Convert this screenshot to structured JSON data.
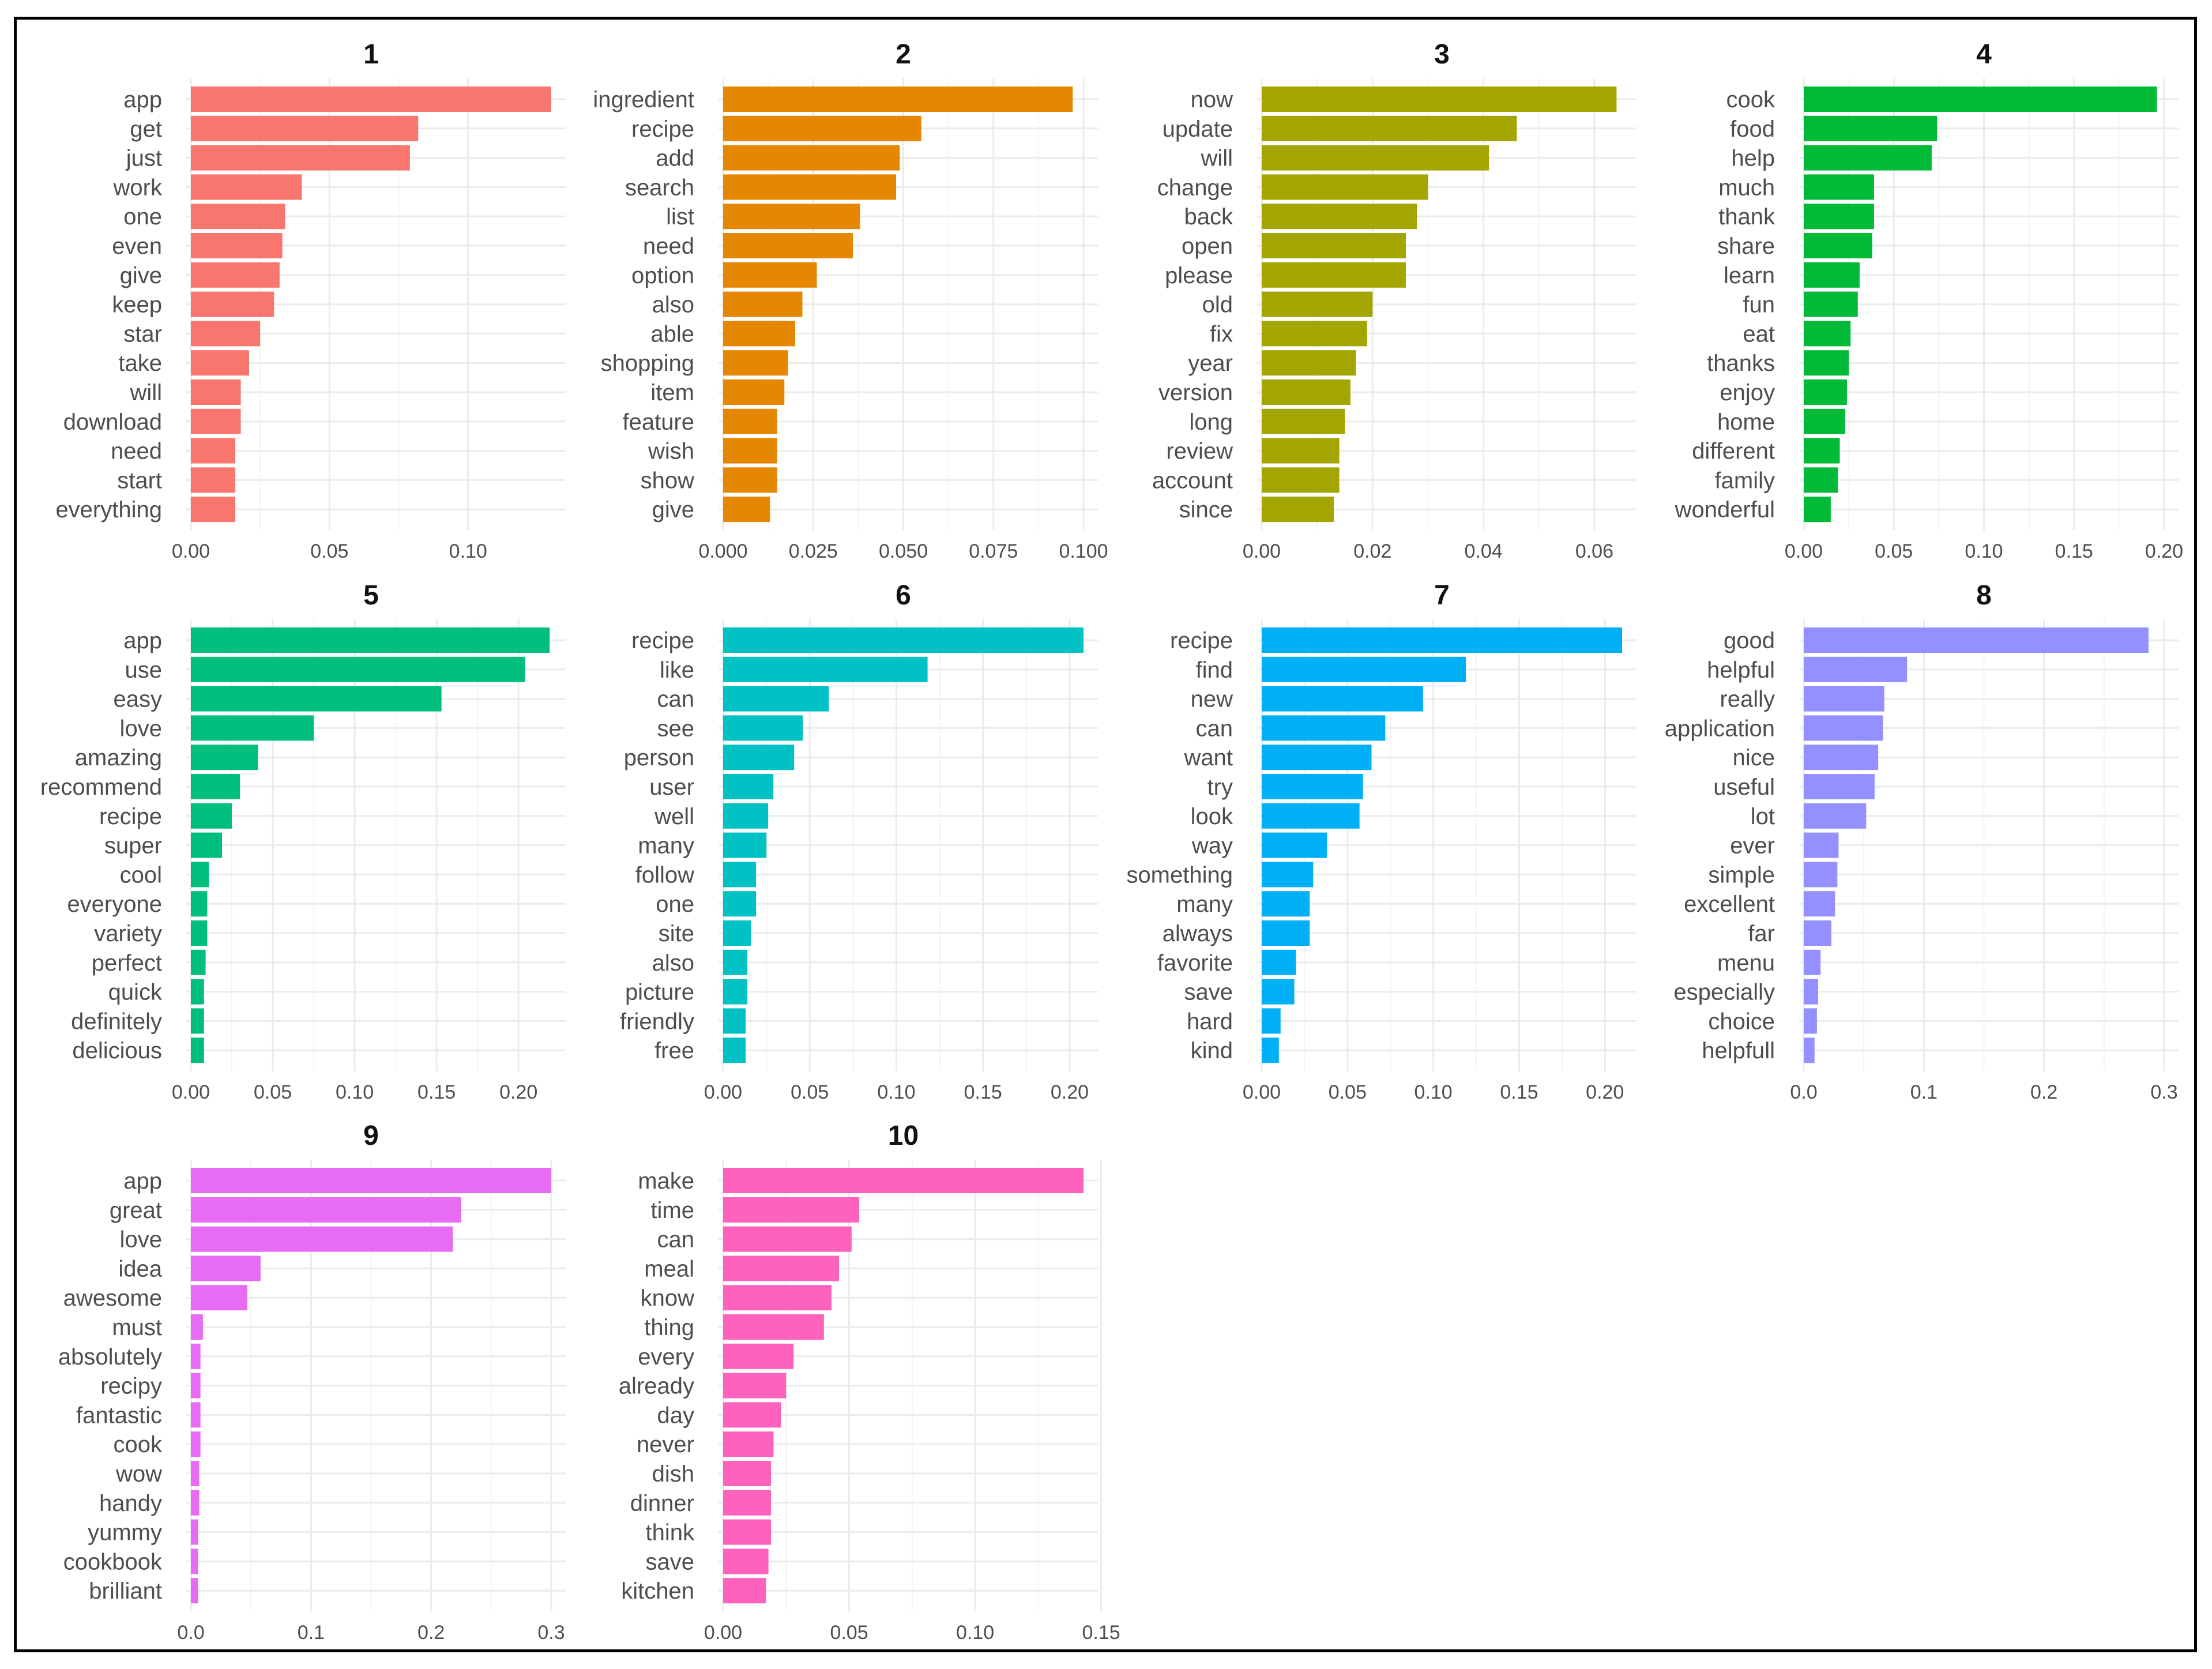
{
  "chart_data": {
    "type": "bar",
    "orientation": "horizontal",
    "layout": "facet_wrap",
    "panels": [
      {
        "title": "1",
        "color": "#F8766D",
        "xlim": [
          0,
          0.13
        ],
        "ticks": [
          0.0,
          0.05,
          0.1
        ],
        "tick_labels": [
          "0.00",
          "0.05",
          "0.10"
        ],
        "terms": [
          "app",
          "get",
          "just",
          "work",
          "one",
          "even",
          "give",
          "keep",
          "star",
          "take",
          "will",
          "download",
          "need",
          "start",
          "everything"
        ],
        "values": [
          0.13,
          0.082,
          0.079,
          0.04,
          0.034,
          0.033,
          0.032,
          0.03,
          0.025,
          0.021,
          0.018,
          0.018,
          0.016,
          0.016,
          0.016
        ]
      },
      {
        "title": "2",
        "color": "#E58700",
        "xlim": [
          0,
          0.1
        ],
        "ticks": [
          0.0,
          0.025,
          0.05,
          0.075,
          0.1
        ],
        "tick_labels": [
          "0.000",
          "0.025",
          "0.050",
          "0.075",
          "0.100"
        ],
        "terms": [
          "ingredient",
          "recipe",
          "add",
          "search",
          "list",
          "need",
          "option",
          "also",
          "able",
          "shopping",
          "item",
          "feature",
          "wish",
          "show",
          "give"
        ],
        "values": [
          0.097,
          0.055,
          0.049,
          0.048,
          0.038,
          0.036,
          0.026,
          0.022,
          0.02,
          0.018,
          0.017,
          0.015,
          0.015,
          0.015,
          0.013
        ]
      },
      {
        "title": "3",
        "color": "#A3A500",
        "xlim": [
          0,
          0.065
        ],
        "ticks": [
          0.0,
          0.02,
          0.04,
          0.06
        ],
        "tick_labels": [
          "0.00",
          "0.02",
          "0.04",
          "0.06"
        ],
        "terms": [
          "now",
          "update",
          "will",
          "change",
          "back",
          "open",
          "please",
          "old",
          "fix",
          "year",
          "version",
          "long",
          "review",
          "account",
          "since"
        ],
        "values": [
          0.064,
          0.046,
          0.041,
          0.03,
          0.028,
          0.026,
          0.026,
          0.02,
          0.019,
          0.017,
          0.016,
          0.015,
          0.014,
          0.014,
          0.013
        ]
      },
      {
        "title": "4",
        "color": "#00BA38",
        "xlim": [
          0,
          0.2
        ],
        "ticks": [
          0.0,
          0.05,
          0.1,
          0.15,
          0.2
        ],
        "tick_labels": [
          "0.00",
          "0.05",
          "0.10",
          "0.15",
          "0.20"
        ],
        "terms": [
          "cook",
          "food",
          "help",
          "much",
          "thank",
          "share",
          "learn",
          "fun",
          "eat",
          "thanks",
          "enjoy",
          "home",
          "different",
          "family",
          "wonderful"
        ],
        "values": [
          0.196,
          0.074,
          0.071,
          0.039,
          0.039,
          0.038,
          0.031,
          0.03,
          0.026,
          0.025,
          0.024,
          0.023,
          0.02,
          0.019,
          0.015
        ]
      },
      {
        "title": "5",
        "color": "#00BF7D",
        "xlim": [
          0,
          0.22
        ],
        "ticks": [
          0.0,
          0.05,
          0.1,
          0.15,
          0.2
        ],
        "tick_labels": [
          "0.00",
          "0.05",
          "0.10",
          "0.15",
          "0.20"
        ],
        "terms": [
          "app",
          "use",
          "easy",
          "love",
          "amazing",
          "recommend",
          "recipe",
          "super",
          "cool",
          "everyone",
          "variety",
          "perfect",
          "quick",
          "definitely",
          "delicious"
        ],
        "values": [
          0.219,
          0.204,
          0.153,
          0.075,
          0.041,
          0.03,
          0.025,
          0.019,
          0.011,
          0.01,
          0.01,
          0.009,
          0.008,
          0.008,
          0.008
        ]
      },
      {
        "title": "6",
        "color": "#00C1C4",
        "xlim": [
          0,
          0.208
        ],
        "ticks": [
          0.0,
          0.05,
          0.1,
          0.15,
          0.2
        ],
        "tick_labels": [
          "0.00",
          "0.05",
          "0.10",
          "0.15",
          "0.20"
        ],
        "terms": [
          "recipe",
          "like",
          "can",
          "see",
          "person",
          "user",
          "well",
          "many",
          "follow",
          "one",
          "site",
          "also",
          "picture",
          "friendly",
          "free"
        ],
        "values": [
          0.208,
          0.118,
          0.061,
          0.046,
          0.041,
          0.029,
          0.026,
          0.025,
          0.019,
          0.019,
          0.016,
          0.014,
          0.014,
          0.013,
          0.013
        ]
      },
      {
        "title": "7",
        "color": "#00B0F6",
        "xlim": [
          0,
          0.21
        ],
        "ticks": [
          0.0,
          0.05,
          0.1,
          0.15,
          0.2
        ],
        "tick_labels": [
          "0.00",
          "0.05",
          "0.10",
          "0.15",
          "0.20"
        ],
        "terms": [
          "recipe",
          "find",
          "new",
          "can",
          "want",
          "try",
          "look",
          "way",
          "something",
          "many",
          "always",
          "favorite",
          "save",
          "hard",
          "kind"
        ],
        "values": [
          0.21,
          0.119,
          0.094,
          0.072,
          0.064,
          0.059,
          0.057,
          0.038,
          0.03,
          0.028,
          0.028,
          0.02,
          0.019,
          0.011,
          0.01
        ]
      },
      {
        "title": "8",
        "color": "#9590FF",
        "xlim": [
          0,
          0.3
        ],
        "ticks": [
          0.0,
          0.1,
          0.2,
          0.3
        ],
        "tick_labels": [
          "0.0",
          "0.1",
          "0.2",
          "0.3"
        ],
        "terms": [
          "good",
          "helpful",
          "really",
          "application",
          "nice",
          "useful",
          "lot",
          "ever",
          "simple",
          "excellent",
          "far",
          "menu",
          "especially",
          "choice",
          "helpfull"
        ],
        "values": [
          0.287,
          0.086,
          0.067,
          0.066,
          0.062,
          0.059,
          0.052,
          0.029,
          0.028,
          0.026,
          0.023,
          0.014,
          0.012,
          0.011,
          0.009
        ]
      },
      {
        "title": "9",
        "color": "#E76BF3",
        "xlim": [
          0,
          0.3
        ],
        "ticks": [
          0.0,
          0.1,
          0.2,
          0.3
        ],
        "tick_labels": [
          "0.0",
          "0.1",
          "0.2",
          "0.3"
        ],
        "terms": [
          "app",
          "great",
          "love",
          "idea",
          "awesome",
          "must",
          "absolutely",
          "recipy",
          "fantastic",
          "cook",
          "wow",
          "handy",
          "yummy",
          "cookbook",
          "brilliant"
        ],
        "values": [
          0.3,
          0.225,
          0.218,
          0.058,
          0.047,
          0.01,
          0.008,
          0.008,
          0.008,
          0.008,
          0.007,
          0.007,
          0.006,
          0.006,
          0.006
        ]
      },
      {
        "title": "10",
        "color": "#FF62BC",
        "xlim": [
          0,
          0.143
        ],
        "ticks": [
          0.0,
          0.05,
          0.1,
          0.15
        ],
        "tick_labels": [
          "0.00",
          "0.05",
          "0.10",
          "0.15"
        ],
        "terms": [
          "make",
          "time",
          "can",
          "meal",
          "know",
          "thing",
          "every",
          "already",
          "day",
          "never",
          "dish",
          "dinner",
          "think",
          "save",
          "kitchen"
        ],
        "values": [
          0.143,
          0.054,
          0.051,
          0.046,
          0.043,
          0.04,
          0.028,
          0.025,
          0.023,
          0.02,
          0.019,
          0.019,
          0.019,
          0.018,
          0.017
        ]
      }
    ]
  }
}
